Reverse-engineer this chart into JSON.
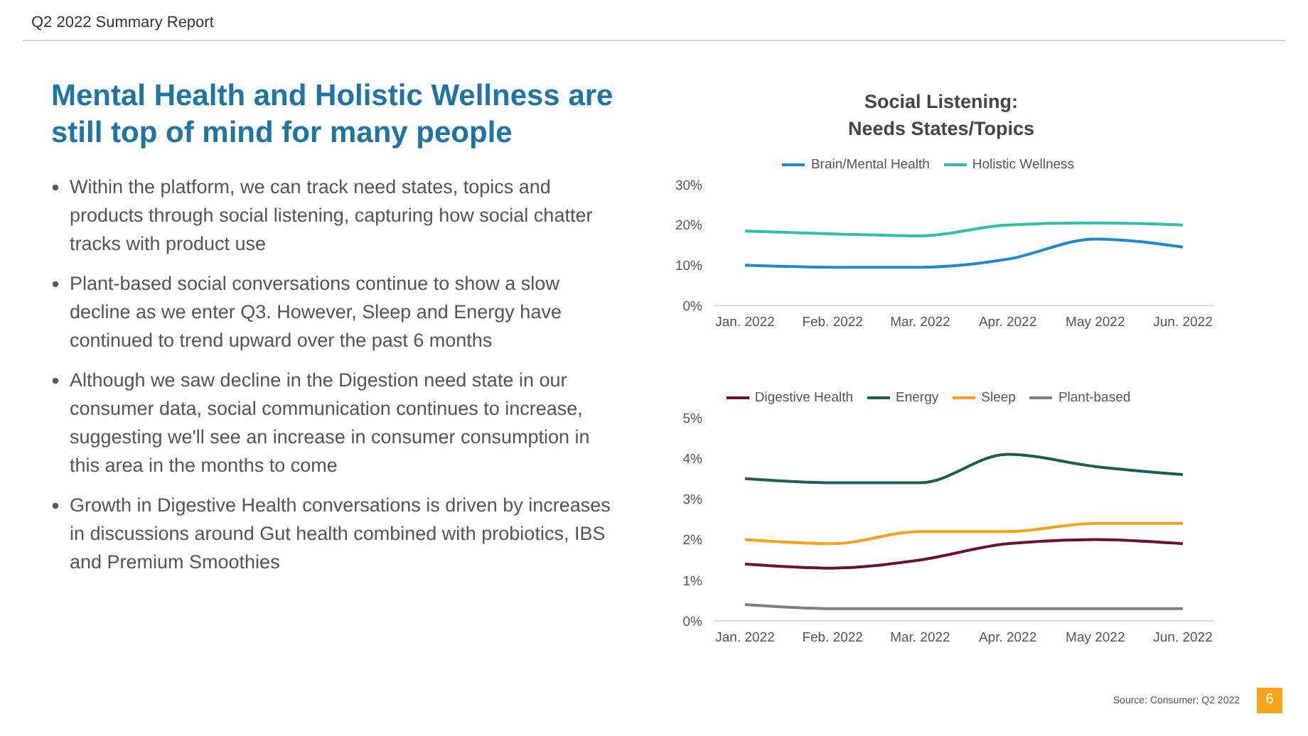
{
  "chart_data": [
    {
      "type": "other",
      "subtitle": "Q2 2022 Summary Report",
      "title": "Mental Health and Holistic Wellness are still top of mind for many people",
      "annotations": [
        "Within the platform, we can track need states, topics and products through social listening, capturing how social chatter tracks with product use",
        "Plant-based social conversations continue to show a slow decline as we enter Q3. However, Sleep and Energy have continued to trend upward over the past 6 months",
        "Although we saw decline in the Digestion need state in our consumer data, social communication continues to increase, suggesting we'll see an increase in consumer consumption in this area in the months to come",
        "Growth in Digestive Health conversations is driven by increases in discussions around Gut health combined with probiotics, IBS and Premium Smoothies",
        "Source: Consumer; Q2 2022",
        "6"
      ]
    },
    {
      "type": "line",
      "title": "Social Listening:\nNeeds States/Topics",
      "categories": [
        "Jan. 2022",
        "Feb. 2022",
        "Mar. 2022",
        "Apr. 2022",
        "May 2022",
        "Jun. 2022"
      ],
      "series": [
        {
          "name": "Brain/Mental Health",
          "color": "#1f8ac9",
          "values": [
            10,
            9.5,
            9.5,
            11.5,
            16.5,
            14.5
          ]
        },
        {
          "name": "Holistic Wellness",
          "color": "#2ebfb0",
          "values": [
            18.5,
            17.8,
            17.3,
            20,
            20.5,
            20
          ]
        }
      ],
      "ylim": [
        0,
        30
      ],
      "yticks": [
        {
          "value": 0,
          "label": "0%"
        },
        {
          "value": 10,
          "label": "10%"
        },
        {
          "value": 20,
          "label": "20%"
        },
        {
          "value": 30,
          "label": "30%"
        }
      ],
      "grid": false,
      "legend": "top",
      "marker": "none",
      "line_style": "solid"
    },
    {
      "type": "line",
      "categories": [
        "Jan. 2022",
        "Feb. 2022",
        "Mar. 2022",
        "Apr. 2022",
        "May 2022",
        "Jun. 2022"
      ],
      "series": [
        {
          "name": "Digestive Health",
          "color": "#6b1039",
          "values": [
            1.4,
            1.3,
            1.5,
            1.9,
            2.0,
            1.9
          ]
        },
        {
          "name": "Energy",
          "color": "#1f5c55",
          "values": [
            3.5,
            3.4,
            3.4,
            4.1,
            3.8,
            3.6
          ]
        },
        {
          "name": "Sleep",
          "color": "#f6a21a",
          "values": [
            2.0,
            1.9,
            2.2,
            2.2,
            2.4,
            2.4
          ]
        },
        {
          "name": "Plant-based",
          "color": "#7f7f7f",
          "values": [
            0.4,
            0.3,
            0.3,
            0.3,
            0.3,
            0.3
          ]
        }
      ],
      "ylim": [
        0,
        5
      ],
      "yticks": [
        {
          "value": 0,
          "label": "0%"
        },
        {
          "value": 1,
          "label": "1%"
        },
        {
          "value": 2,
          "label": "2%"
        },
        {
          "value": 3,
          "label": "3%"
        },
        {
          "value": 4,
          "label": "4%"
        },
        {
          "value": 5,
          "label": "5%"
        }
      ],
      "grid": false,
      "legend": "top",
      "marker": "none",
      "line_style": "solid"
    }
  ]
}
